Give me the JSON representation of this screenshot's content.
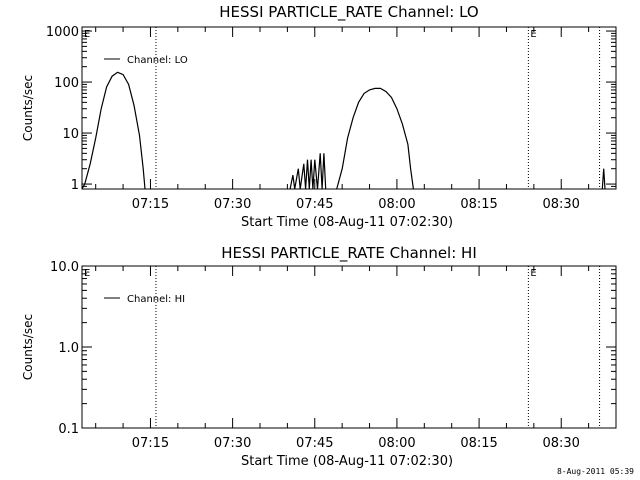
{
  "footer_text": "8-Aug-2011 05:39",
  "chart_data": [
    {
      "type": "line",
      "title": "HESSI PARTICLE_RATE Channel: LO",
      "xlabel": "Start Time (08-Aug-11 07:02:30)",
      "ylabel": "Counts/sec",
      "yscale": "log",
      "ylim": [
        0.8,
        1200
      ],
      "xlim_minutes_of_day": [
        422.5,
        520
      ],
      "x_ticks": [
        "07:15",
        "07:30",
        "07:45",
        "08:00",
        "08:15",
        "08:30"
      ],
      "y_ticks": [
        "1",
        "10",
        "100",
        "1000"
      ],
      "legend": {
        "position": "top-left",
        "entries": [
          "Channel: LO"
        ]
      },
      "markers": [
        {
          "time": "07:16",
          "label": ""
        },
        {
          "time": "08:24",
          "label": "E"
        },
        {
          "time": "08:37",
          "label": ""
        }
      ],
      "edge_label": "E",
      "series": [
        {
          "name": "Channel: LO",
          "points": [
            [
              "07:02:30",
              0.8
            ],
            [
              "07:03:00",
              1
            ],
            [
              "07:04:00",
              2.5
            ],
            [
              "07:05:00",
              8
            ],
            [
              "07:06:00",
              30
            ],
            [
              "07:07:00",
              80
            ],
            [
              "07:08:00",
              130
            ],
            [
              "07:09:00",
              155
            ],
            [
              "07:10:00",
              140
            ],
            [
              "07:11:00",
              90
            ],
            [
              "07:12:00",
              35
            ],
            [
              "07:13:00",
              9
            ],
            [
              "07:13:40",
              2
            ],
            [
              "07:14:00",
              0.8
            ],
            null,
            [
              "07:40:30",
              0.8
            ],
            [
              "07:41:00",
              1.5
            ],
            [
              "07:41:20",
              0.8
            ],
            [
              "07:42:00",
              2
            ],
            [
              "07:42:20",
              0.8
            ],
            [
              "07:43:00",
              2.5
            ],
            [
              "07:43:20",
              0.8
            ],
            [
              "07:43:40",
              3
            ],
            [
              "07:44:00",
              0.8
            ],
            [
              "07:44:20",
              3
            ],
            [
              "07:44:40",
              0.8
            ],
            [
              "07:45:00",
              3
            ],
            [
              "07:45:30",
              0.8
            ],
            [
              "07:46:00",
              4
            ],
            [
              "07:46:20",
              0.8
            ],
            [
              "07:46:40",
              4
            ],
            [
              "07:47:00",
              0.8
            ],
            null,
            [
              "07:49:00",
              0.8
            ],
            [
              "07:50:00",
              2
            ],
            [
              "07:51:00",
              8
            ],
            [
              "07:52:00",
              20
            ],
            [
              "07:53:00",
              40
            ],
            [
              "07:54:00",
              60
            ],
            [
              "07:55:00",
              70
            ],
            [
              "07:56:00",
              75
            ],
            [
              "07:57:00",
              75
            ],
            [
              "07:58:00",
              65
            ],
            [
              "07:59:00",
              50
            ],
            [
              "08:00:00",
              30
            ],
            [
              "08:01:00",
              15
            ],
            [
              "08:02:00",
              6
            ],
            [
              "08:02:30",
              2
            ],
            [
              "08:03:00",
              0.8
            ],
            null,
            [
              "08:37:30",
              0.8
            ],
            [
              "08:37:45",
              2
            ],
            [
              "08:38:00",
              0.8
            ]
          ]
        }
      ]
    },
    {
      "type": "line",
      "title": "HESSI PARTICLE_RATE Channel: HI",
      "xlabel": "Start Time (08-Aug-11 07:02:30)",
      "ylabel": "Counts/sec",
      "yscale": "log",
      "ylim": [
        0.1,
        10
      ],
      "xlim_minutes_of_day": [
        422.5,
        520
      ],
      "x_ticks": [
        "07:15",
        "07:30",
        "07:45",
        "08:00",
        "08:15",
        "08:30"
      ],
      "y_ticks": [
        "0.1",
        "1.0",
        "10.0"
      ],
      "legend": {
        "position": "top-left",
        "entries": [
          "Channel: HI"
        ]
      },
      "markers": [
        {
          "time": "07:16",
          "label": ""
        },
        {
          "time": "08:24",
          "label": "E"
        },
        {
          "time": "08:37",
          "label": ""
        }
      ],
      "edge_label": "E",
      "series": [
        {
          "name": "Channel: HI",
          "points": []
        }
      ]
    }
  ]
}
